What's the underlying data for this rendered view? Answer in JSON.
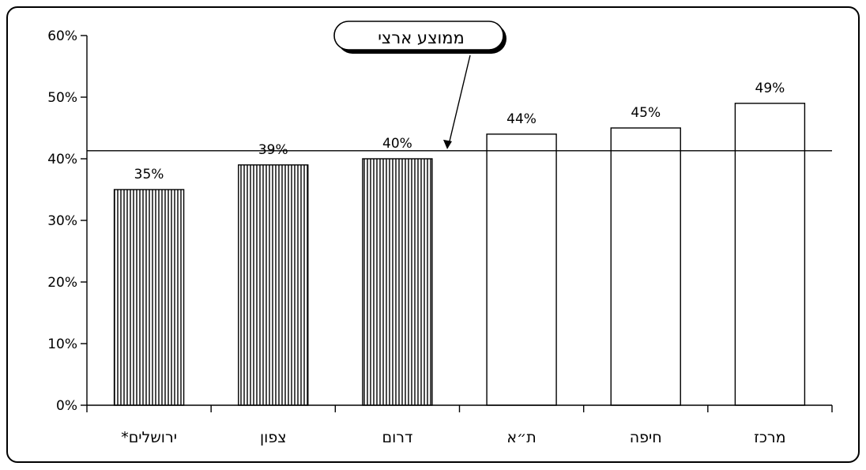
{
  "chart_data": {
    "type": "bar",
    "categories": [
      "ירושלים*",
      "צפון",
      "דרום",
      "ת״א",
      "חיפה",
      "מרכז"
    ],
    "values": [
      35,
      39,
      40,
      44,
      45,
      49
    ],
    "value_labels": [
      "35%",
      "39%",
      "40%",
      "44%",
      "45%",
      "49%"
    ],
    "bar_fill": [
      "hatched",
      "hatched",
      "hatched",
      "plain",
      "plain",
      "plain"
    ],
    "ylim": [
      0,
      60
    ],
    "yticks": [
      0,
      10,
      20,
      30,
      40,
      50,
      60
    ],
    "ytick_labels": [
      "0%",
      "10%",
      "20%",
      "30%",
      "40%",
      "50%",
      "60%"
    ],
    "reference_line": {
      "value": 41.3,
      "label": "ממוצע ארצי"
    },
    "grid": false,
    "colors": {
      "bar_stroke": "#000000",
      "hatch": "#000000",
      "plain_fill": "#ffffff"
    }
  }
}
